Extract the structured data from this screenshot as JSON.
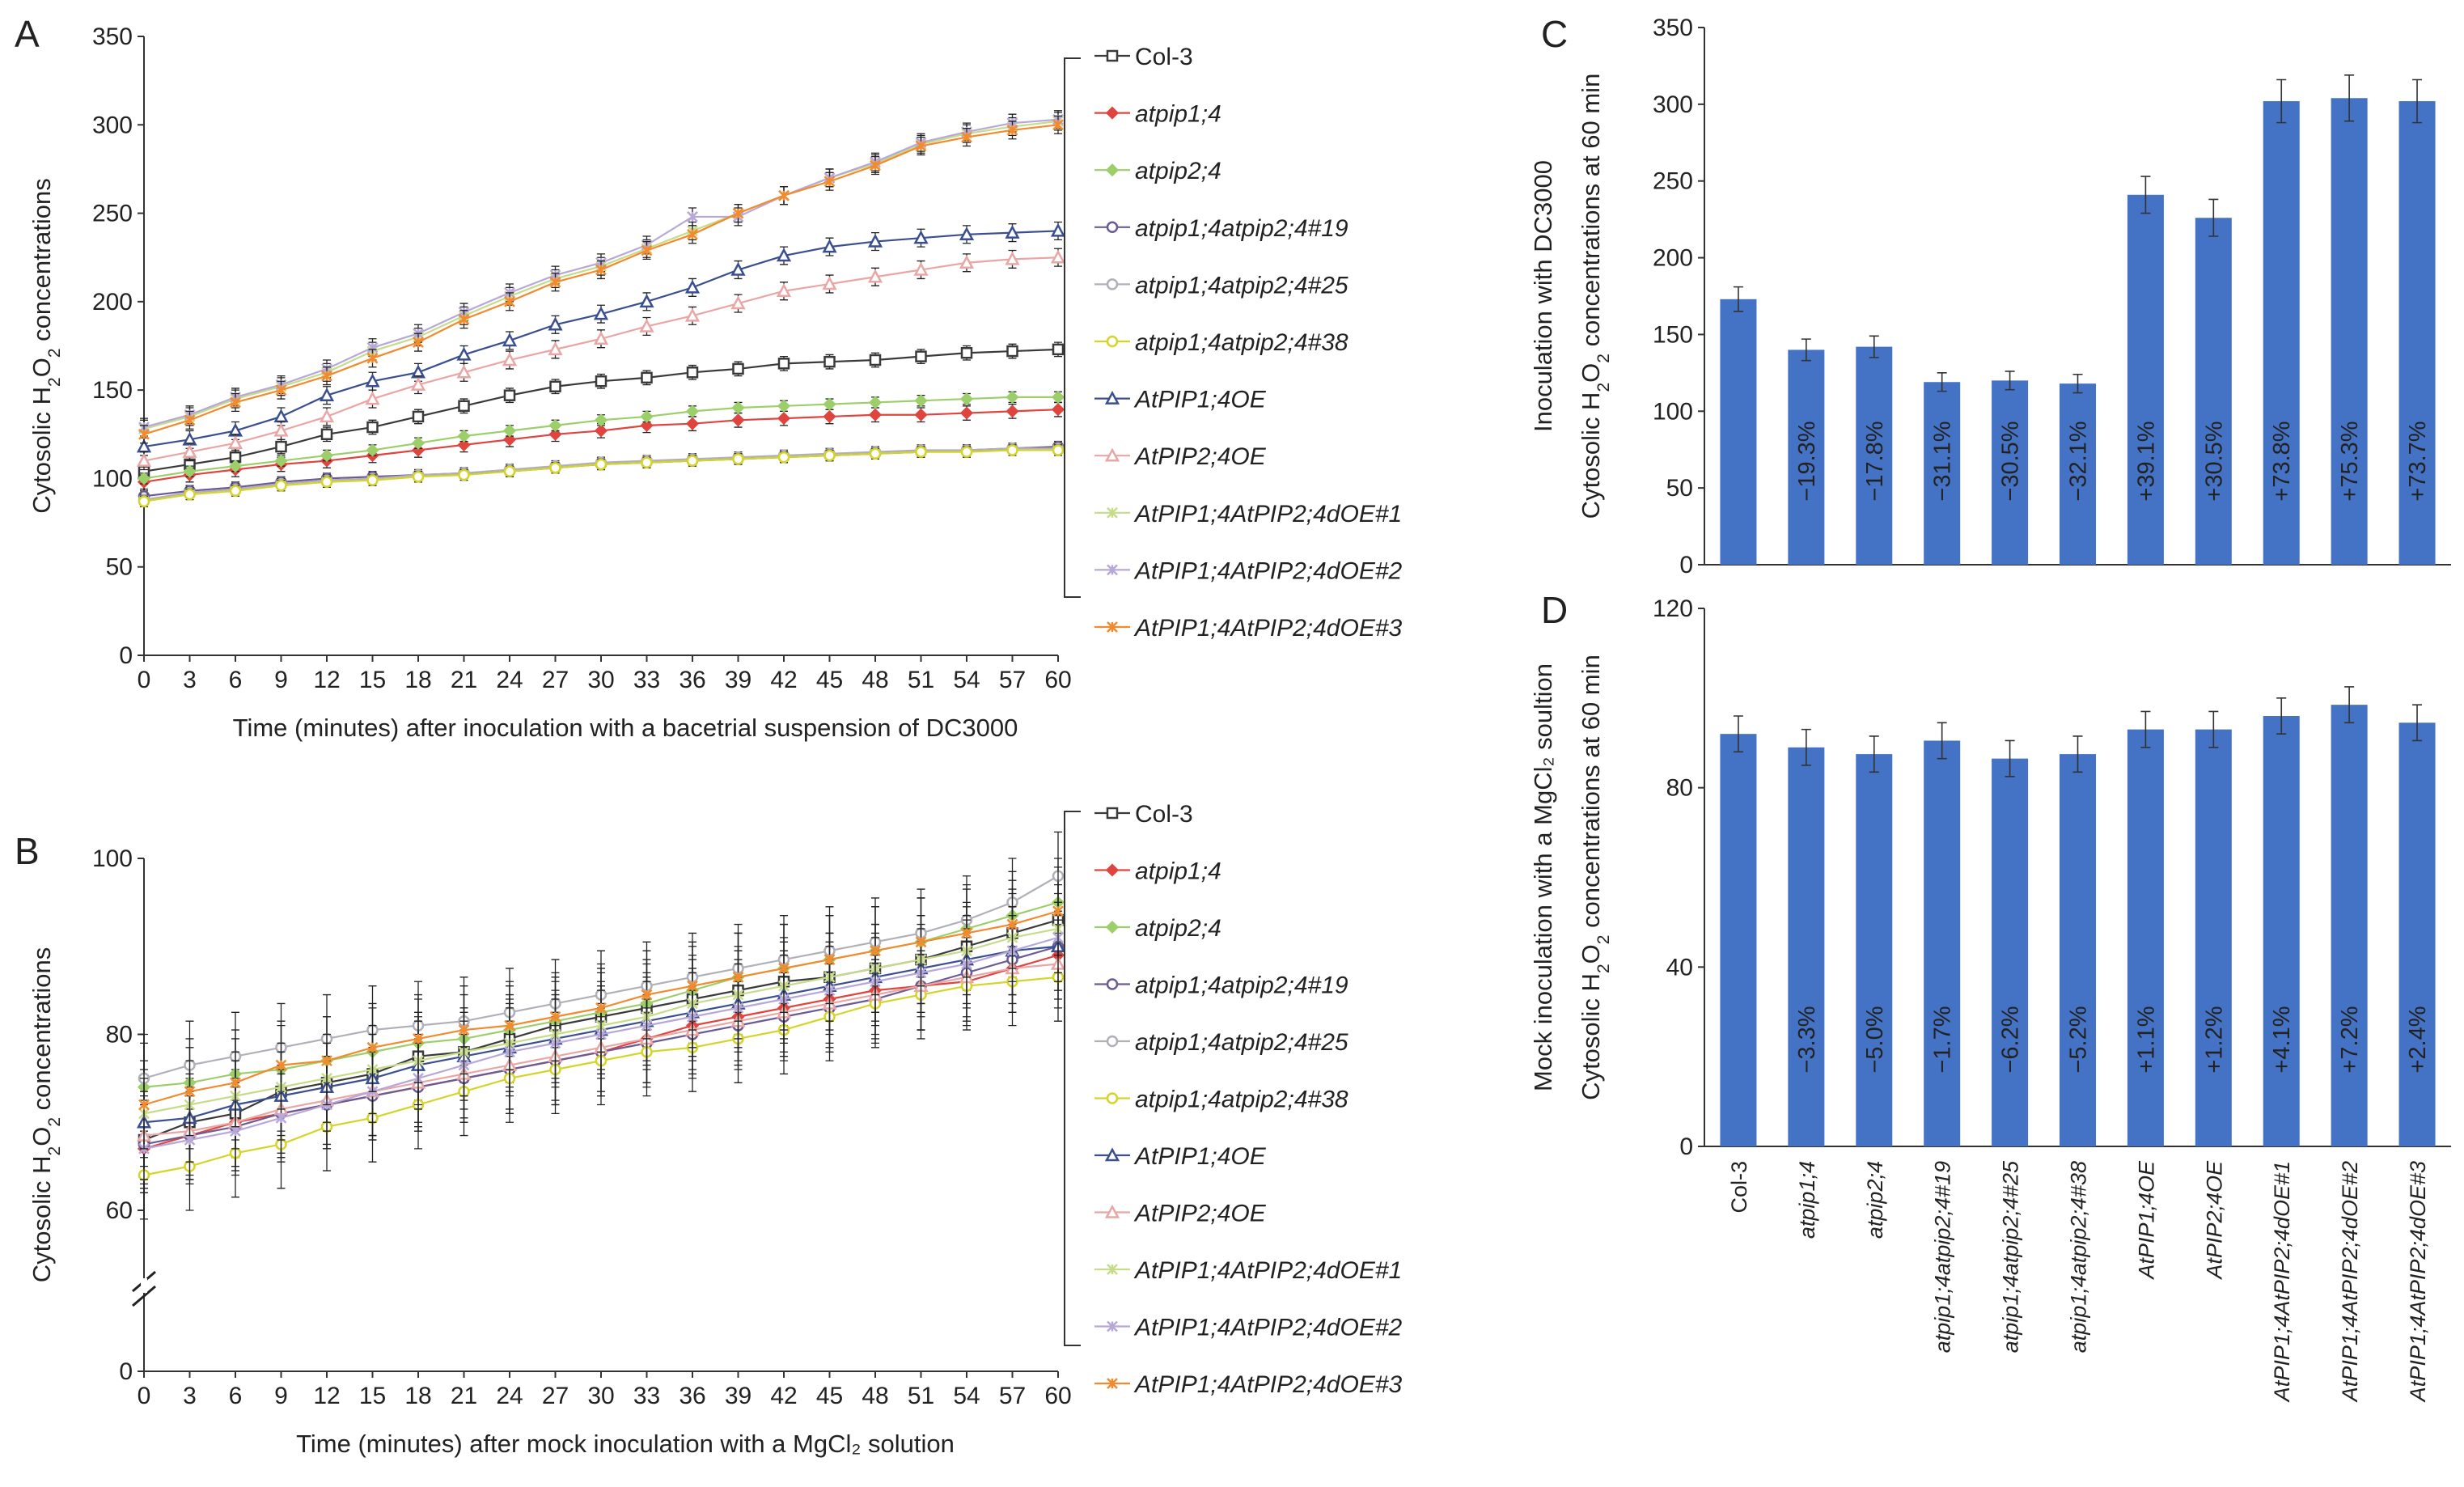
{
  "chart_data": [
    {
      "panel": "A",
      "type": "line",
      "xlabel": "Time (minutes) after inoculation with a bacetrial suspension of DC3000",
      "ylabel": "Cytosolic H2O2 concentrations",
      "x": [
        0,
        3,
        6,
        9,
        12,
        15,
        18,
        21,
        24,
        27,
        30,
        33,
        36,
        39,
        42,
        45,
        48,
        51,
        54,
        57,
        60
      ],
      "xlim": [
        0,
        60
      ],
      "ylim": [
        0,
        350
      ],
      "yticks": [
        0,
        50,
        100,
        150,
        200,
        250,
        300,
        350
      ],
      "series": [
        {
          "name": "Col-3",
          "color": "#3a3a3a",
          "marker": "square",
          "err": 4,
          "values": [
            104,
            108,
            112,
            118,
            125,
            129,
            135,
            141,
            147,
            152,
            155,
            157,
            160,
            162,
            165,
            166,
            167,
            169,
            171,
            172,
            173
          ]
        },
        {
          "name": "atpip1;4",
          "color": "#e0443f",
          "marker": "diamond",
          "err": 4,
          "values": [
            98,
            102,
            105,
            108,
            110,
            113,
            116,
            119,
            122,
            125,
            127,
            130,
            131,
            133,
            134,
            135,
            136,
            136,
            137,
            138,
            139
          ]
        },
        {
          "name": "atpip2;4",
          "color": "#9ccf6a",
          "marker": "diamond",
          "err": 3,
          "values": [
            100,
            104,
            107,
            110,
            113,
            116,
            120,
            124,
            127,
            130,
            133,
            135,
            138,
            140,
            141,
            142,
            143,
            144,
            145,
            146,
            146
          ]
        },
        {
          "name": "atpip1;4atpip2;4#19",
          "color": "#6b5b95",
          "marker": "circle",
          "err": 3,
          "values": [
            90,
            93,
            95,
            98,
            100,
            101,
            102,
            103,
            104,
            106,
            108,
            109,
            110,
            111,
            112,
            113,
            114,
            115,
            116,
            117,
            118
          ]
        },
        {
          "name": "atpip1;4atpip2;4#25",
          "color": "#b0b0b8",
          "marker": "circle",
          "err": 3,
          "values": [
            88,
            92,
            94,
            97,
            99,
            100,
            102,
            103,
            105,
            107,
            109,
            110,
            111,
            112,
            113,
            114,
            115,
            116,
            116,
            117,
            117
          ]
        },
        {
          "name": "atpip1;4atpip2;4#38",
          "color": "#d4d42a",
          "marker": "circle",
          "err": 3,
          "values": [
            87,
            91,
            93,
            96,
            98,
            99,
            101,
            102,
            104,
            106,
            108,
            109,
            110,
            111,
            112,
            113,
            114,
            115,
            115,
            116,
            116
          ]
        },
        {
          "name": "AtPIP1;4OE",
          "color": "#3a4f8f",
          "marker": "triangle",
          "err": 5,
          "values": [
            118,
            122,
            127,
            135,
            147,
            155,
            160,
            170,
            178,
            187,
            193,
            200,
            208,
            218,
            226,
            231,
            234,
            236,
            238,
            239,
            240
          ]
        },
        {
          "name": "AtPIP2;4OE",
          "color": "#eaa5a5",
          "marker": "triangle",
          "err": 5,
          "values": [
            110,
            115,
            120,
            127,
            135,
            145,
            153,
            160,
            167,
            173,
            179,
            186,
            192,
            199,
            206,
            210,
            214,
            218,
            222,
            224,
            225
          ]
        },
        {
          "name": "AtPIP1;4AtPIP2;4dOE#1",
          "color": "#c6dc8a",
          "marker": "x",
          "err": 5,
          "values": [
            128,
            135,
            145,
            152,
            160,
            172,
            180,
            192,
            203,
            213,
            220,
            230,
            240,
            250,
            260,
            270,
            278,
            289,
            295,
            299,
            302
          ]
        },
        {
          "name": "AtPIP1;4AtPIP2;4dOE#2",
          "color": "#b7a8d8",
          "marker": "x",
          "err": 5,
          "values": [
            129,
            136,
            146,
            153,
            162,
            174,
            182,
            194,
            205,
            215,
            222,
            232,
            248,
            248,
            260,
            270,
            279,
            290,
            296,
            301,
            303
          ]
        },
        {
          "name": "AtPIP1;4AtPIP2;4dOE#3",
          "color": "#f28a2e",
          "marker": "x",
          "err": 5,
          "values": [
            125,
            133,
            143,
            150,
            158,
            168,
            177,
            190,
            200,
            211,
            218,
            229,
            238,
            250,
            260,
            268,
            277,
            288,
            293,
            297,
            300
          ]
        }
      ]
    },
    {
      "panel": "B",
      "type": "line",
      "xlabel": "Time (minutes) after mock inoculation with a MgCl₂ solution",
      "ylabel": "Cytosolic H2O2 concentrations",
      "x": [
        0,
        3,
        6,
        9,
        12,
        15,
        18,
        21,
        24,
        27,
        30,
        33,
        36,
        39,
        42,
        45,
        48,
        51,
        54,
        57,
        60
      ],
      "xlim": [
        0,
        60
      ],
      "ylim": [
        50,
        100
      ],
      "yticks": [
        0,
        60,
        80,
        100
      ],
      "axis_break": true,
      "series": [
        {
          "name": "Col-3",
          "color": "#3a3a3a",
          "marker": "square",
          "err": 5,
          "values": [
            68,
            70,
            71,
            73.5,
            74.5,
            75.5,
            77.5,
            78,
            79.5,
            81,
            82,
            83,
            84,
            85,
            86,
            86.5,
            87.5,
            88.5,
            90,
            91.5,
            93
          ]
        },
        {
          "name": "atpip1;4",
          "color": "#e0443f",
          "marker": "diamond",
          "err": 5,
          "values": [
            67,
            68.5,
            70,
            71,
            72,
            73,
            74,
            75,
            76,
            77,
            78,
            79.5,
            81,
            82,
            83,
            84,
            85,
            85.5,
            86,
            87.5,
            89
          ]
        },
        {
          "name": "atpip2;4",
          "color": "#9ccf6a",
          "marker": "diamond",
          "err": 5,
          "values": [
            74,
            74.5,
            75.5,
            76,
            77,
            78,
            79,
            79.5,
            80.5,
            81.5,
            82.5,
            83.5,
            85,
            86.5,
            87.5,
            88.5,
            89.5,
            90.5,
            92,
            93.5,
            95
          ]
        },
        {
          "name": "atpip1;4atpip2;4#19",
          "color": "#6b5b95",
          "marker": "circle",
          "err": 5,
          "values": [
            67.5,
            68.5,
            69.5,
            71,
            72,
            73,
            74,
            75,
            76,
            77,
            78,
            79,
            80,
            81,
            82,
            83,
            84,
            85.5,
            87,
            88.5,
            90
          ]
        },
        {
          "name": "atpip1;4atpip2;4#25",
          "color": "#b0b0b8",
          "marker": "circle",
          "err": 5,
          "values": [
            75,
            76.5,
            77.5,
            78.5,
            79.5,
            80.5,
            81,
            81.5,
            82.5,
            83.5,
            84.5,
            85.5,
            86.5,
            87.5,
            88.5,
            89.5,
            90.5,
            91.5,
            93,
            95,
            98
          ]
        },
        {
          "name": "atpip1;4atpip2;4#38",
          "color": "#d4d42a",
          "marker": "circle",
          "err": 5,
          "values": [
            64,
            65,
            66.5,
            67.5,
            69.5,
            70.5,
            72,
            73.5,
            75,
            76,
            77,
            78,
            78.5,
            79.5,
            80.5,
            82,
            83.5,
            84.5,
            85.5,
            86,
            86.5
          ]
        },
        {
          "name": "AtPIP1;4OE",
          "color": "#3a4f8f",
          "marker": "triangle",
          "err": 5,
          "values": [
            70,
            70.5,
            72,
            73,
            74,
            75,
            76.5,
            77.5,
            78.5,
            79.5,
            80.5,
            81.5,
            82.5,
            83.5,
            84.5,
            85.5,
            86.5,
            87.5,
            88.5,
            89.5,
            90
          ]
        },
        {
          "name": "AtPIP2;4OE",
          "color": "#eaa5a5",
          "marker": "triangle",
          "err": 5,
          "values": [
            68.5,
            69,
            70,
            71.5,
            72.5,
            73.5,
            74.5,
            75.5,
            76.5,
            77.5,
            78.5,
            79.5,
            80.5,
            81.5,
            82.5,
            83.5,
            84.5,
            85.5,
            86.5,
            87.5,
            88
          ]
        },
        {
          "name": "AtPIP1;4AtPIP2;4dOE#1",
          "color": "#c6dc8a",
          "marker": "x",
          "err": 5,
          "values": [
            71,
            72,
            73,
            74,
            75,
            76,
            77,
            78,
            79,
            80,
            81,
            82,
            83.5,
            84.5,
            85.5,
            86.5,
            87.5,
            88.5,
            89.5,
            91,
            92
          ]
        },
        {
          "name": "AtPIP1;4AtPIP2;4dOE#2",
          "color": "#b7a8d8",
          "marker": "x",
          "err": 5,
          "values": [
            67,
            68,
            69,
            70.5,
            72,
            73.5,
            75,
            76.5,
            78,
            79,
            80,
            81,
            82,
            83,
            84,
            85,
            86,
            87,
            88,
            89.5,
            91
          ]
        },
        {
          "name": "AtPIP1;4AtPIP2;4dOE#3",
          "color": "#f28a2e",
          "marker": "x",
          "err": 5,
          "values": [
            72,
            73.5,
            74.5,
            76.5,
            77,
            78.5,
            79.5,
            80.5,
            81,
            82,
            83,
            84.5,
            85.5,
            86.5,
            87.5,
            88.5,
            89.5,
            90.5,
            91.5,
            92.5,
            94
          ]
        }
      ]
    },
    {
      "panel": "C",
      "type": "bar",
      "ylabel": "Inoculation with DC3000",
      "ylabel2": "Cytosolic H2O2 concentrations at 60 min",
      "ylim": [
        0,
        350
      ],
      "yticks": [
        0,
        50,
        100,
        150,
        200,
        250,
        300,
        350
      ],
      "color": "#4472c4",
      "categories": [
        "Col-3",
        "atpip1;4",
        "atpip2;4",
        "atpip1;4atpip2;4#19",
        "atpip1;4atpip2;4#25",
        "atpip1;4atpip2;4#38",
        "AtPIP1;4OE",
        "AtPIP2;4OE",
        "AtPIP1;4AtPIP2;4dOE#1",
        "AtPIP1;4AtPIP2;4dOE#2",
        "AtPIP1;4AtPIP2;4dOE#3"
      ],
      "values": [
        173,
        140,
        142,
        119,
        120,
        118,
        241,
        226,
        302,
        304,
        302
      ],
      "errors": [
        8,
        7,
        7,
        6,
        6,
        6,
        12,
        12,
        14,
        15,
        14
      ],
      "labels": [
        "",
        "−19.3%",
        "−17.8%",
        "−31.1%",
        "−30.5%",
        "−32.1%",
        "+39.1%",
        "+30.5%",
        "+73.8%",
        "+75.3%",
        "+73.7%"
      ]
    },
    {
      "panel": "D",
      "type": "bar",
      "ylabel": "Mock inoculation with a MgCl₂ soultion",
      "ylabel2": "Cytosolic H2O2 concentrations at 60 min",
      "ylim": [
        0,
        120
      ],
      "yticks": [
        0,
        40,
        80,
        120
      ],
      "color": "#4472c4",
      "categories": [
        "Col-3",
        "atpip1;4",
        "atpip2;4",
        "atpip1;4atpip2;4#19",
        "atpip1;4atpip2;4#25",
        "atpip1;4atpip2;4#38",
        "AtPIP1;4OE",
        "AtPIP2;4OE",
        "AtPIP1;4AtPIP2;4dOE#1",
        "AtPIP1;4AtPIP2;4dOE#2",
        "AtPIP1;4AtPIP2;4dOE#3"
      ],
      "values": [
        92,
        89,
        87.5,
        90.5,
        86.5,
        87.5,
        93,
        93,
        96,
        98.5,
        94.5
      ],
      "errors": [
        4,
        4,
        4,
        4,
        4,
        4,
        4,
        4,
        4,
        4,
        4
      ],
      "labels": [
        "",
        "−3.3%",
        "−5.0%",
        "−1.7%",
        "−6.2%",
        "−5.2%",
        "+1.1%",
        "+1.2%",
        "+4.1%",
        "+7.2%",
        "+2.4%"
      ]
    }
  ],
  "panel_letters": [
    "A",
    "B",
    "C",
    "D"
  ]
}
